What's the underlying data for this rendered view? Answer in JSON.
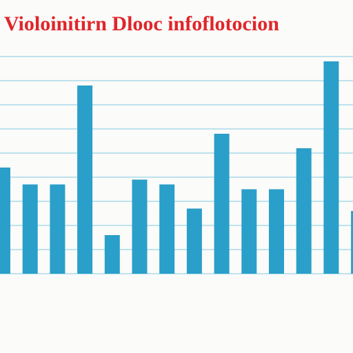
{
  "chart_data": {
    "type": "bar",
    "title": "Violoinitirn Dlooc infoflotocion",
    "categories": [
      null,
      null,
      null,
      null,
      null,
      null,
      null,
      null,
      null,
      null,
      null,
      null,
      null,
      null
    ],
    "values": [
      4.4,
      3.7,
      3.7,
      7.8,
      1.6,
      3.9,
      3.7,
      2.7,
      5.8,
      3.5,
      3.5,
      5.2,
      8.8,
      2.6
    ],
    "color": "#2a9fc9",
    "title_color": "#e0262a",
    "ylim": [
      0,
      9
    ],
    "yticks": [
      0,
      1,
      2,
      3,
      4,
      5,
      6,
      7,
      8,
      9
    ],
    "grid": true
  }
}
